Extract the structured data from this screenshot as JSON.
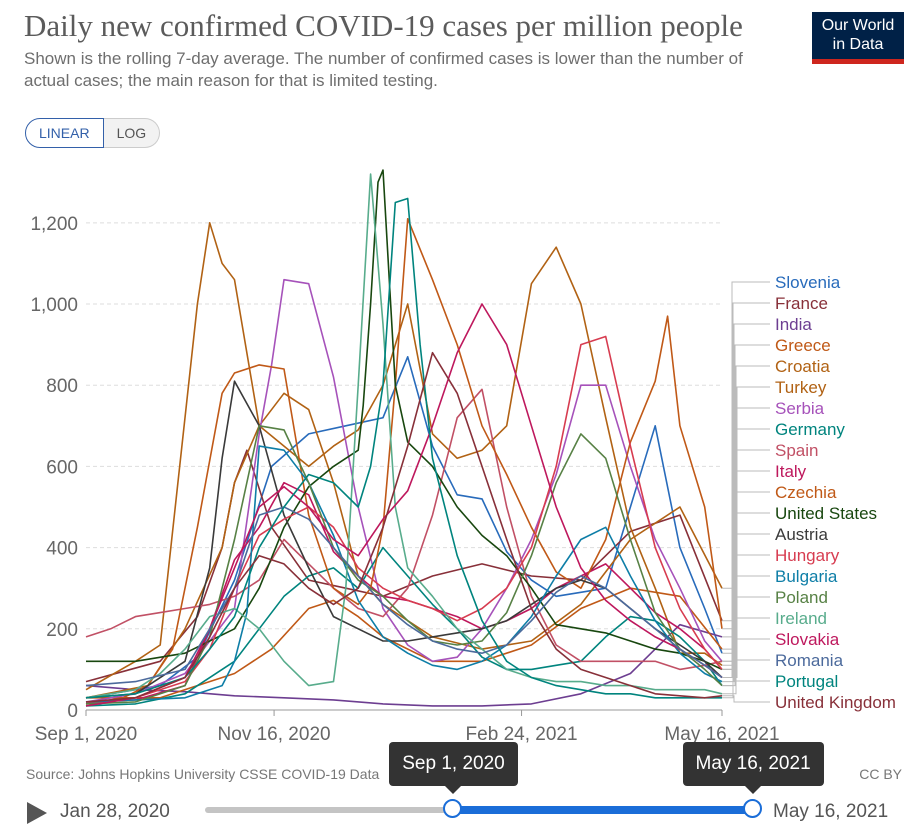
{
  "header": {
    "title": "Daily new confirmed COVID-19 cases per million people",
    "subtitle": "Shown is the rolling 7-day average. The number of confirmed cases is lower than the number of actual cases; the main reason for that is limited testing.",
    "logo_line1": "Our World",
    "logo_line2": "in Data"
  },
  "controls": {
    "linear_label": "LINEAR",
    "log_label": "LOG",
    "active": "LINEAR"
  },
  "footer": {
    "source": "Source: Johns Hopkins University CSSE COVID-19 Data",
    "license": "CC BY",
    "timeline_start": "Jan 28, 2020",
    "timeline_end": "May 16, 2021",
    "selected_start": "Sep 1, 2020",
    "selected_end": "May 16, 2021",
    "selected_start_fraction": 0.453,
    "selected_end_fraction": 1.0
  },
  "colors": {
    "accent": "#1a6dd8",
    "logo_bg": "#002147",
    "logo_bar": "#ce261e"
  },
  "chart_data": {
    "type": "line",
    "x_tick_labels": [
      "Sep 1, 2020",
      "Nov 16, 2020",
      "Feb 24, 2021",
      "May 16, 2021"
    ],
    "x_tick_days": [
      0,
      76,
      176,
      257
    ],
    "x_range_days": [
      0,
      257
    ],
    "y_ticks": [
      0,
      200,
      400,
      600,
      800,
      1000,
      1200
    ],
    "y_tick_labels": [
      "0",
      "200",
      "400",
      "600",
      "800",
      "1,000",
      "1,200"
    ],
    "ylim": [
      0,
      1340
    ],
    "grid": "horizontal dashed",
    "legend": "right, line-end labels",
    "series": [
      {
        "name": "Slovenia",
        "color": "#286bbb",
        "x": [
          0,
          30,
          45,
          60,
          75,
          90,
          105,
          120,
          130,
          140,
          150,
          160,
          170,
          180,
          190,
          200,
          210,
          220,
          230,
          240,
          250,
          257
        ],
        "y": [
          30,
          60,
          130,
          320,
          600,
          680,
          700,
          720,
          870,
          650,
          530,
          520,
          390,
          320,
          280,
          290,
          300,
          500,
          700,
          400,
          250,
          140
        ]
      },
      {
        "name": "France",
        "color": "#883039",
        "x": [
          0,
          30,
          45,
          55,
          60,
          65,
          75,
          90,
          105,
          120,
          140,
          160,
          180,
          200,
          220,
          240,
          257
        ],
        "y": [
          70,
          120,
          230,
          400,
          560,
          640,
          450,
          320,
          300,
          280,
          330,
          360,
          330,
          320,
          440,
          480,
          220
        ]
      },
      {
        "name": "India",
        "color": "#6d3e91",
        "x": [
          0,
          20,
          40,
          60,
          80,
          100,
          120,
          140,
          160,
          180,
          200,
          220,
          240,
          257
        ],
        "y": [
          60,
          50,
          45,
          35,
          30,
          25,
          15,
          10,
          10,
          15,
          40,
          90,
          210,
          180
        ]
      },
      {
        "name": "Greece",
        "color": "#c05917",
        "x": [
          0,
          30,
          60,
          75,
          90,
          100,
          110,
          120,
          140,
          160,
          180,
          200,
          220,
          240,
          257
        ],
        "y": [
          30,
          30,
          90,
          150,
          250,
          270,
          230,
          180,
          120,
          120,
          160,
          250,
          300,
          280,
          150
        ]
      },
      {
        "name": "Croatia",
        "color": "#b16214",
        "x": [
          0,
          25,
          40,
          55,
          60,
          70,
          80,
          90,
          100,
          110,
          120,
          140,
          160,
          180,
          200,
          220,
          240,
          257
        ],
        "y": [
          30,
          60,
          200,
          400,
          560,
          700,
          780,
          740,
          560,
          330,
          260,
          180,
          150,
          170,
          260,
          420,
          500,
          300
        ]
      },
      {
        "name": "Turkey",
        "color": "#b16214",
        "x": [
          0,
          20,
          30,
          45,
          50,
          55,
          60,
          70,
          80,
          90,
          100,
          110,
          120,
          130,
          140,
          150,
          160,
          170,
          180,
          190,
          200,
          210,
          220,
          230,
          240,
          250,
          257
        ],
        "y": [
          50,
          120,
          160,
          1000,
          1200,
          1100,
          1060,
          700,
          650,
          600,
          650,
          690,
          800,
          1000,
          680,
          620,
          640,
          700,
          1050,
          1140,
          1000,
          720,
          450,
          300,
          140,
          140,
          110
        ]
      },
      {
        "name": "Serbia",
        "color": "#a652ba",
        "x": [
          0,
          20,
          40,
          60,
          70,
          75,
          80,
          90,
          100,
          110,
          120,
          130,
          140,
          150,
          160,
          170,
          180,
          190,
          200,
          210,
          220,
          230,
          240,
          250,
          257
        ],
        "y": [
          20,
          40,
          90,
          250,
          680,
          850,
          1060,
          1050,
          820,
          500,
          250,
          160,
          120,
          130,
          200,
          300,
          420,
          580,
          800,
          800,
          600,
          420,
          300,
          170,
          120
        ]
      },
      {
        "name": "Germany",
        "color": "#00847e",
        "x": [
          0,
          20,
          40,
          60,
          70,
          80,
          90,
          100,
          110,
          120,
          130,
          140,
          150,
          160,
          170,
          180,
          190,
          200,
          210,
          220,
          230,
          240,
          250,
          257
        ],
        "y": [
          10,
          15,
          40,
          120,
          200,
          280,
          330,
          350,
          300,
          400,
          330,
          260,
          200,
          130,
          100,
          100,
          110,
          120,
          180,
          230,
          220,
          180,
          120,
          60
        ]
      },
      {
        "name": "Spain",
        "color": "#c15065",
        "x": [
          0,
          10,
          20,
          30,
          40,
          50,
          60,
          70,
          80,
          90,
          100,
          110,
          120,
          130,
          140,
          150,
          160,
          170,
          180,
          190,
          200,
          210,
          220,
          230,
          240,
          250,
          257
        ],
        "y": [
          180,
          200,
          230,
          240,
          250,
          260,
          280,
          320,
          420,
          360,
          300,
          250,
          230,
          300,
          480,
          720,
          790,
          500,
          280,
          160,
          120,
          120,
          120,
          120,
          100,
          110,
          120
        ]
      },
      {
        "name": "Italy",
        "color": "#be185d",
        "x": [
          0,
          20,
          40,
          50,
          60,
          70,
          80,
          90,
          100,
          110,
          120,
          130,
          140,
          150,
          160,
          170,
          180,
          190,
          200,
          210,
          220,
          230,
          240,
          250,
          257
        ],
        "y": [
          20,
          25,
          60,
          200,
          370,
          450,
          560,
          530,
          390,
          330,
          280,
          270,
          250,
          230,
          200,
          220,
          250,
          300,
          330,
          360,
          300,
          240,
          200,
          150,
          100
        ]
      },
      {
        "name": "Czechia",
        "color": "#c05917",
        "x": [
          0,
          15,
          25,
          35,
          45,
          55,
          60,
          70,
          80,
          90,
          100,
          110,
          115,
          120,
          125,
          130,
          140,
          150,
          160,
          170,
          180,
          190,
          200,
          210,
          220,
          230,
          235,
          240,
          250,
          257
        ],
        "y": [
          15,
          30,
          60,
          150,
          450,
          780,
          830,
          850,
          840,
          480,
          300,
          260,
          300,
          450,
          800,
          1210,
          1060,
          900,
          700,
          580,
          450,
          340,
          300,
          420,
          660,
          810,
          970,
          700,
          500,
          200
        ]
      },
      {
        "name": "United States",
        "color": "#18470f",
        "x": [
          0,
          20,
          40,
          60,
          70,
          80,
          90,
          100,
          110,
          112,
          115,
          118,
          120,
          125,
          130,
          140,
          150,
          160,
          170,
          180,
          190,
          200,
          210,
          220,
          230,
          240,
          250,
          257
        ],
        "y": [
          120,
          120,
          140,
          200,
          300,
          450,
          550,
          600,
          640,
          750,
          1000,
          1300,
          1330,
          800,
          660,
          600,
          500,
          430,
          380,
          300,
          210,
          200,
          190,
          170,
          150,
          140,
          120,
          100
        ]
      },
      {
        "name": "Austria",
        "color": "#3a3a3a",
        "x": [
          0,
          20,
          40,
          50,
          55,
          60,
          70,
          80,
          90,
          100,
          110,
          120,
          130,
          140,
          150,
          160,
          170,
          180,
          190,
          200,
          210,
          220,
          230,
          240,
          250,
          257
        ],
        "y": [
          30,
          40,
          120,
          350,
          620,
          810,
          700,
          480,
          350,
          230,
          200,
          170,
          170,
          180,
          190,
          200,
          220,
          260,
          300,
          320,
          300,
          250,
          200,
          160,
          120,
          80
        ]
      },
      {
        "name": "Hungary",
        "color": "#d73c50",
        "x": [
          0,
          20,
          40,
          50,
          60,
          70,
          80,
          90,
          100,
          110,
          120,
          130,
          140,
          150,
          160,
          170,
          180,
          190,
          200,
          210,
          220,
          230,
          240,
          250,
          257
        ],
        "y": [
          15,
          30,
          70,
          150,
          300,
          430,
          470,
          500,
          450,
          350,
          300,
          270,
          250,
          220,
          250,
          300,
          400,
          600,
          900,
          920,
          650,
          400,
          250,
          150,
          100
        ]
      },
      {
        "name": "Bulgaria",
        "color": "#0e7ea7",
        "x": [
          0,
          20,
          40,
          55,
          60,
          65,
          70,
          80,
          90,
          100,
          110,
          120,
          130,
          140,
          150,
          160,
          170,
          180,
          190,
          200,
          210,
          220,
          230,
          240,
          250,
          257
        ],
        "y": [
          20,
          25,
          30,
          60,
          120,
          240,
          650,
          640,
          560,
          430,
          270,
          180,
          140,
          110,
          100,
          120,
          160,
          230,
          330,
          420,
          450,
          330,
          220,
          140,
          90,
          70
        ]
      },
      {
        "name": "Poland",
        "color": "#578145",
        "x": [
          0,
          20,
          40,
          50,
          60,
          70,
          80,
          90,
          100,
          110,
          120,
          130,
          140,
          150,
          160,
          170,
          180,
          190,
          200,
          210,
          220,
          230,
          240,
          250,
          257
        ],
        "y": [
          15,
          20,
          60,
          180,
          420,
          700,
          690,
          560,
          400,
          320,
          280,
          220,
          170,
          160,
          170,
          240,
          380,
          560,
          680,
          620,
          420,
          240,
          150,
          100,
          60
        ]
      },
      {
        "name": "Ireland",
        "color": "#58ac8c",
        "x": [
          0,
          20,
          30,
          40,
          50,
          60,
          70,
          80,
          90,
          100,
          105,
          110,
          115,
          120,
          125,
          130,
          140,
          150,
          160,
          170,
          180,
          190,
          200,
          210,
          220,
          230,
          240,
          250,
          257
        ],
        "y": [
          30,
          50,
          90,
          150,
          230,
          250,
          200,
          120,
          60,
          70,
          300,
          800,
          1320,
          950,
          500,
          350,
          280,
          200,
          150,
          100,
          80,
          70,
          70,
          60,
          60,
          50,
          50,
          50,
          40
        ]
      },
      {
        "name": "Slovakia",
        "color": "#be185d",
        "x": [
          0,
          20,
          40,
          50,
          60,
          70,
          80,
          90,
          100,
          110,
          120,
          130,
          140,
          150,
          160,
          170,
          180,
          190,
          200,
          210,
          220,
          230,
          240,
          250,
          257
        ],
        "y": [
          10,
          30,
          80,
          200,
          350,
          500,
          550,
          500,
          420,
          380,
          470,
          540,
          700,
          880,
          1000,
          900,
          700,
          500,
          350,
          270,
          220,
          180,
          150,
          110,
          80
        ]
      },
      {
        "name": "Romania",
        "color": "#4c6a9c",
        "x": [
          0,
          20,
          40,
          50,
          60,
          70,
          80,
          90,
          100,
          110,
          120,
          130,
          140,
          150,
          160,
          170,
          180,
          190,
          200,
          210,
          220,
          230,
          240,
          250,
          257
        ],
        "y": [
          60,
          70,
          100,
          200,
          300,
          480,
          500,
          470,
          400,
          330,
          260,
          210,
          170,
          150,
          140,
          160,
          220,
          290,
          330,
          300,
          250,
          200,
          150,
          110,
          80
        ]
      },
      {
        "name": "Portugal",
        "color": "#00847e",
        "x": [
          0,
          20,
          40,
          50,
          60,
          70,
          80,
          90,
          100,
          110,
          115,
          120,
          125,
          130,
          135,
          140,
          150,
          160,
          170,
          180,
          190,
          200,
          210,
          220,
          230,
          240,
          250,
          257
        ],
        "y": [
          30,
          40,
          80,
          150,
          230,
          400,
          500,
          580,
          560,
          500,
          600,
          800,
          1250,
          1260,
          900,
          620,
          380,
          220,
          120,
          80,
          60,
          50,
          40,
          40,
          30,
          30,
          30,
          30
        ]
      },
      {
        "name": "United Kingdom",
        "color": "#883039",
        "x": [
          0,
          20,
          40,
          50,
          60,
          70,
          80,
          90,
          100,
          110,
          120,
          130,
          140,
          150,
          160,
          170,
          180,
          190,
          200,
          210,
          220,
          230,
          240,
          250,
          257
        ],
        "y": [
          20,
          30,
          80,
          180,
          300,
          380,
          360,
          300,
          260,
          300,
          450,
          650,
          880,
          780,
          600,
          420,
          250,
          150,
          100,
          80,
          60,
          40,
          35,
          30,
          35
        ]
      }
    ]
  }
}
